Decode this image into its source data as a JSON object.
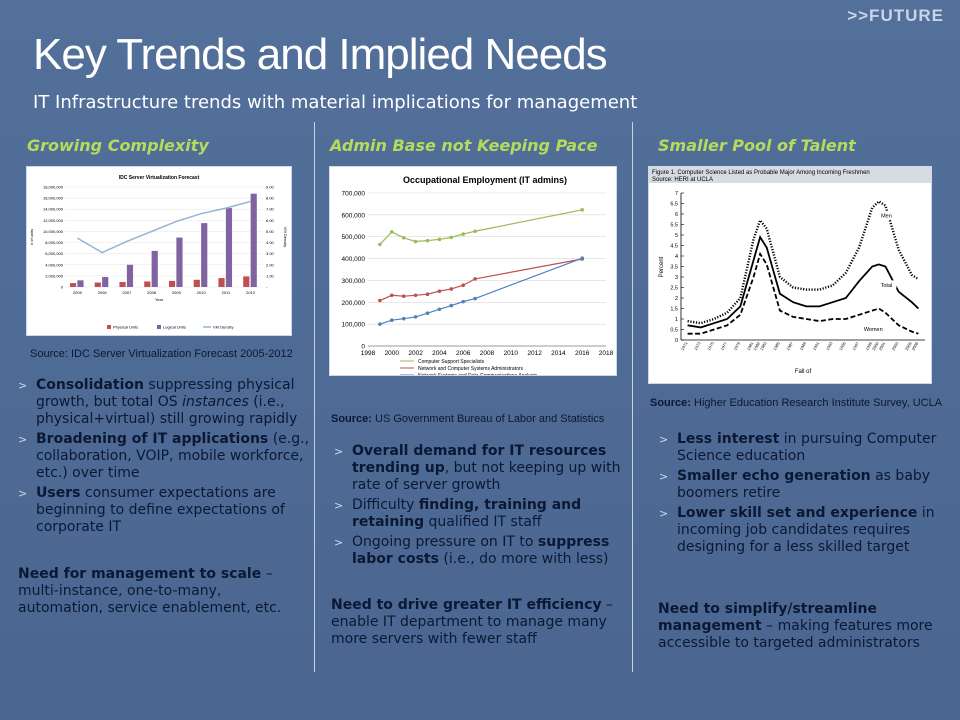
{
  "header": {
    "tag": ">>FUTURE",
    "title": "Key Trends and Implied Needs",
    "subtitle": "IT Infrastructure trends with material implications for management"
  },
  "columns": [
    {
      "heading": "Growing Complexity",
      "source": "Source: IDC Server Virtualization Forecast 2005-2012",
      "bullets": [
        {
          "bold": "Consolidation",
          "text": " suppressing physical growth, but total OS ",
          "italic": "instances",
          "tail": " (i.e., physical+virtual) still growing rapidly"
        },
        {
          "bold": "Broadening of IT applications",
          "text": " (e.g., collaboration, VOIP, mobile workforce, etc.) over time"
        },
        {
          "bold": "Users",
          "text": " consumer expectations are beginning to define expectations of corporate IT"
        }
      ],
      "need_bold": "Need for management to scale",
      "need_text": " – multi-instance, one-to-many, automation, service enablement, etc."
    },
    {
      "heading": "Admin Base not Keeping Pace",
      "source_bold": "Source:",
      "source_text": " US Government Bureau of Labor and Statistics",
      "bullets": [
        {
          "bold": "Overall demand for IT resources trending up",
          "text": ", but not keeping up with rate of server growth"
        },
        {
          "pre": "Difficulty ",
          "bold": "finding, training and retaining",
          "text": " qualified IT staff"
        },
        {
          "pre": "Ongoing pressure on IT to ",
          "bold": "suppress labor costs",
          "text": " (i.e., do more with less)"
        }
      ],
      "need_bold": "Need to drive greater IT efficiency",
      "need_text": " – enable IT department to manage many more servers with fewer staff"
    },
    {
      "heading": "Smaller Pool of  Talent",
      "source_bold": "Source:",
      "source_text": " Higher Education Research Institute Survey, UCLA",
      "bullets": [
        {
          "bold": "Less interest",
          "text": " in pursuing Computer Science education"
        },
        {
          "bold": "Smaller echo generation",
          "text": " as baby boomers retire"
        },
        {
          "bold": "Lower skill set and experience",
          "text": " in incoming job candidates requires designing for a less skilled target"
        }
      ],
      "need_bold": "Need to simplify/streamline management",
      "need_text": " – making features more accessible to targeted administrators"
    }
  ],
  "chart_data": [
    {
      "type": "bar",
      "title": "IDC Server Virtualization Forecast",
      "categories": [
        "2005",
        "2006",
        "2007",
        "2008",
        "2009",
        "2010",
        "2011",
        "2012"
      ],
      "xlabel": "Year",
      "ylabel": "# of units",
      "y2label": "VM Density",
      "ylim": [
        0,
        18000000
      ],
      "y2lim": [
        0,
        9
      ],
      "yticks": [
        "18,000,000",
        "16,000,000",
        "14,000,000",
        "12,000,000",
        "10,000,000",
        "8,000,000",
        "6,000,000",
        "4,000,000",
        "2,000,000",
        "0"
      ],
      "y2ticks": [
        "9.00",
        "8.00",
        "7.00",
        "6.00",
        "5.00",
        "4.00",
        "3.00",
        "2.00",
        "1.00",
        "-"
      ],
      "series": [
        {
          "name": "Physical Units",
          "kind": "bar",
          "color": "#c0504d",
          "values": [
            700000,
            800000,
            900000,
            1000000,
            1100000,
            1300000,
            1600000,
            1900000
          ]
        },
        {
          "name": "Logical Units",
          "kind": "bar",
          "color": "#8064a2",
          "values": [
            1200000,
            1800000,
            4000000,
            6500000,
            8900000,
            11500000,
            14200000,
            16800000
          ]
        },
        {
          "name": "VM Density",
          "kind": "line",
          "color": "#95b3d7",
          "values": [
            4.4,
            3.1,
            4.1,
            5.0,
            5.9,
            6.6,
            7.1,
            7.7
          ]
        }
      ]
    },
    {
      "type": "line",
      "title": "Occupational Employment (IT admins)",
      "xlim": [
        1998,
        2018
      ],
      "xticks": [
        "1998",
        "2000",
        "2002",
        "2004",
        "2006",
        "2008",
        "2010",
        "2012",
        "2014",
        "2016",
        "2018"
      ],
      "ylim": [
        0,
        700000
      ],
      "yticks": [
        "700,000",
        "600,000",
        "500,000",
        "400,000",
        "300,000",
        "200,000",
        "100,000",
        "0"
      ],
      "series": [
        {
          "name": "Computer Support Specialists",
          "color": "#9bbb59",
          "x": [
            1999,
            2000,
            2001,
            2002,
            2003,
            2004,
            2005,
            2006,
            2007,
            2016
          ],
          "y": [
            465000,
            522000,
            495000,
            478000,
            482000,
            488000,
            497000,
            512000,
            525000,
            623000
          ]
        },
        {
          "name": "Network and Computer Systems Administrators",
          "color": "#c0504d",
          "x": [
            1999,
            2000,
            2001,
            2002,
            2003,
            2004,
            2005,
            2006,
            2007,
            2016
          ],
          "y": [
            208000,
            232000,
            228000,
            232000,
            237000,
            251000,
            261000,
            278000,
            307000,
            398000
          ]
        },
        {
          "name": "Network Systems and Data Communications Analysts",
          "color": "#4f81bd",
          "x": [
            1999,
            2000,
            2001,
            2002,
            2003,
            2004,
            2005,
            2006,
            2007,
            2016
          ],
          "y": [
            100000,
            118000,
            125000,
            133000,
            150000,
            168000,
            185000,
            203000,
            217000,
            402000
          ]
        }
      ]
    },
    {
      "type": "line",
      "title": "Figure 1. Computer Science Listed as Probable Major Among Incoming Freshmen",
      "subtitle": "Source: HERI at UCLA",
      "ylabel": "Percent",
      "xlabel": "Fall of",
      "ylim": [
        0,
        7
      ],
      "yticks": [
        "7",
        "6.5",
        "6",
        "5.5",
        "5",
        "4.5",
        "4",
        "3.5",
        "3",
        "2.5",
        "2",
        "1.5",
        "1",
        "0.5",
        "0"
      ],
      "x": [
        1971,
        1973,
        1975,
        1977,
        1979,
        1981,
        1982,
        1983,
        1985,
        1987,
        1989,
        1991,
        1993,
        1995,
        1997,
        1999,
        2000,
        2001,
        2003,
        2005,
        2006
      ],
      "series": [
        {
          "name": "Men",
          "style": "dotted",
          "values": [
            0.9,
            0.8,
            1.0,
            1.3,
            2.0,
            4.8,
            5.7,
            5.3,
            3.0,
            2.5,
            2.4,
            2.4,
            2.6,
            3.2,
            4.4,
            6.3,
            6.6,
            6.4,
            4.3,
            3.1,
            2.9
          ]
        },
        {
          "name": "Total",
          "style": "solid",
          "values": [
            0.7,
            0.6,
            0.8,
            1.0,
            1.6,
            3.8,
            4.9,
            4.4,
            2.2,
            1.8,
            1.6,
            1.6,
            1.8,
            2.0,
            2.8,
            3.5,
            3.6,
            3.5,
            2.3,
            1.8,
            1.5
          ]
        },
        {
          "name": "Women",
          "style": "dashed",
          "values": [
            0.3,
            0.3,
            0.5,
            0.7,
            1.2,
            3.0,
            4.1,
            3.6,
            1.4,
            1.1,
            1.0,
            0.9,
            1.0,
            1.0,
            1.2,
            1.4,
            1.5,
            1.3,
            0.7,
            0.4,
            0.3
          ]
        }
      ]
    }
  ]
}
